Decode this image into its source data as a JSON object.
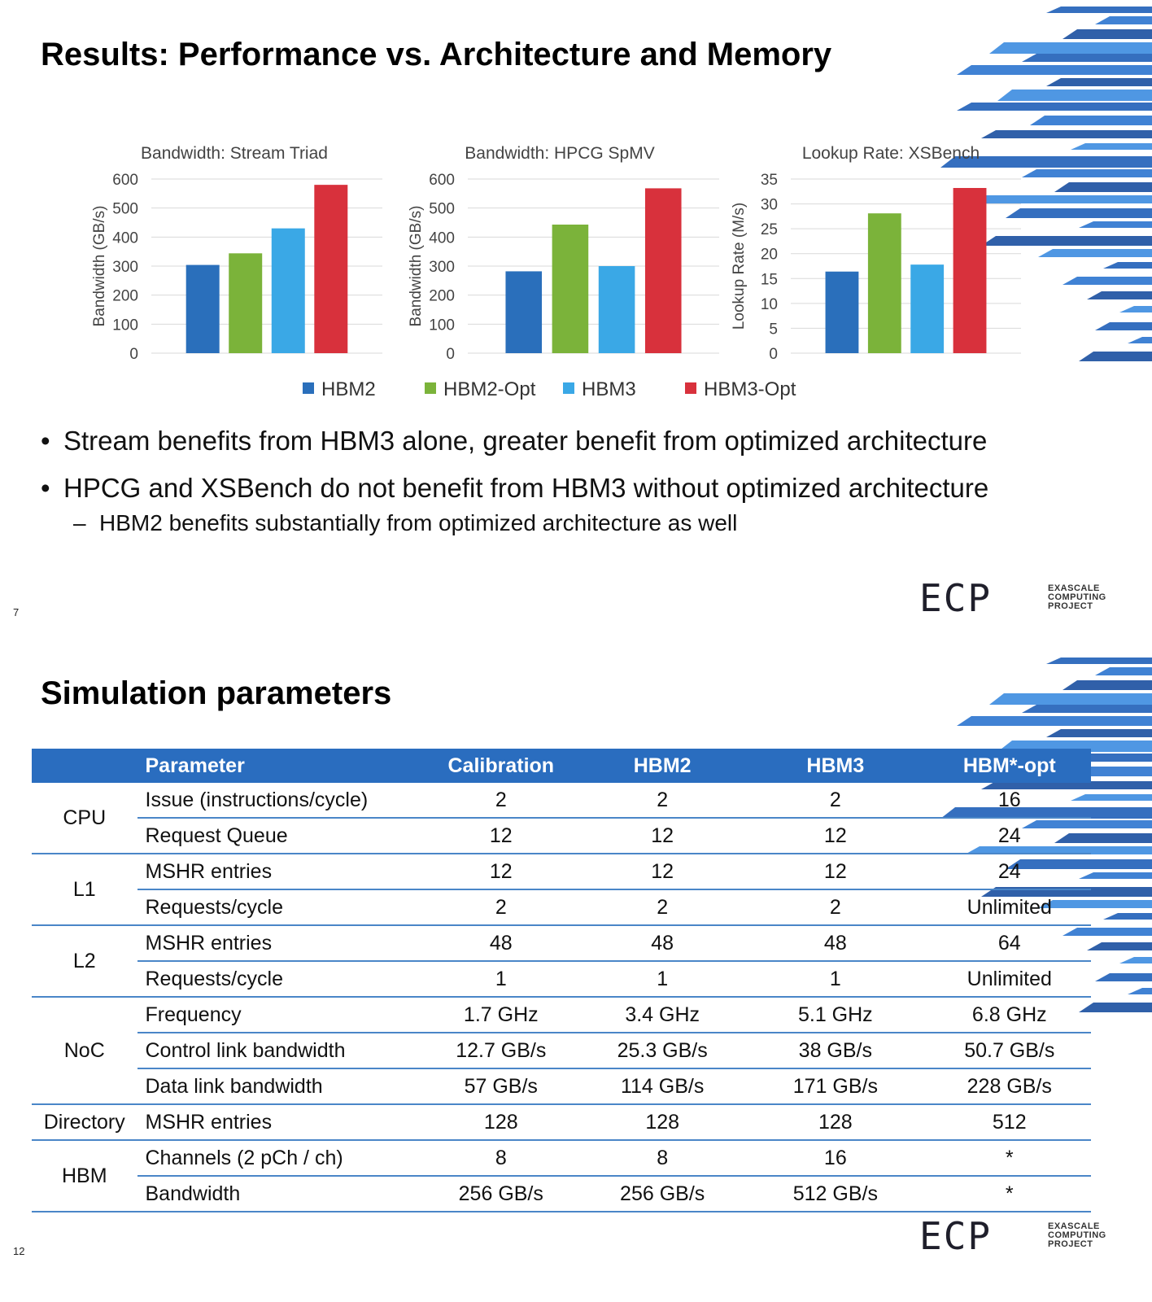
{
  "slide1": {
    "title": "Results: Performance vs. Architecture and Memory",
    "page_number": "7",
    "bullets": [
      "Stream benefits from HBM3 alone, greater benefit from optimized architecture",
      "HPCG and XSBench do not benefit from HBM3 without optimized architecture"
    ],
    "sub_bullet": "HBM2 benefits substantially from optimized architecture as well",
    "legend": [
      {
        "label": "HBM2",
        "color": "#2a6fbb"
      },
      {
        "label": "HBM2-Opt",
        "color": "#7bb33a"
      },
      {
        "label": "HBM3",
        "color": "#3aa8e6"
      },
      {
        "label": "HBM3-Opt",
        "color": "#d8313c"
      }
    ]
  },
  "chart_data": [
    {
      "type": "bar",
      "title": "Bandwidth: Stream Triad",
      "ylabel": "Bandwidth (GB/s)",
      "ylim": [
        0,
        600
      ],
      "yticks": [
        0,
        100,
        200,
        300,
        400,
        500,
        600
      ],
      "series": [
        {
          "name": "HBM2",
          "values": [
            304
          ]
        },
        {
          "name": "HBM2-Opt",
          "values": [
            344
          ]
        },
        {
          "name": "HBM3",
          "values": [
            430
          ]
        },
        {
          "name": "HBM3-Opt",
          "values": [
            580
          ]
        }
      ],
      "grid": true,
      "legend_position": "bottom"
    },
    {
      "type": "bar",
      "title": "Bandwidth: HPCG SpMV",
      "ylabel": "Bandwidth (GB/s)",
      "ylim": [
        0,
        600
      ],
      "yticks": [
        0,
        100,
        200,
        300,
        400,
        500,
        600
      ],
      "series": [
        {
          "name": "HBM2",
          "values": [
            282
          ]
        },
        {
          "name": "HBM2-Opt",
          "values": [
            443
          ]
        },
        {
          "name": "HBM3",
          "values": [
            300
          ]
        },
        {
          "name": "HBM3-Opt",
          "values": [
            568
          ]
        }
      ],
      "grid": true,
      "legend_position": "bottom"
    },
    {
      "type": "bar",
      "title": "Lookup Rate: XSBench",
      "ylabel": "Lookup Rate (M/s)",
      "ylim": [
        0,
        35
      ],
      "yticks": [
        0,
        5,
        10,
        15,
        20,
        25,
        30,
        35
      ],
      "series": [
        {
          "name": "HBM2",
          "values": [
            16.4
          ]
        },
        {
          "name": "HBM2-Opt",
          "values": [
            28.1
          ]
        },
        {
          "name": "HBM3",
          "values": [
            17.8
          ]
        },
        {
          "name": "HBM3-Opt",
          "values": [
            33.2
          ]
        }
      ],
      "grid": true,
      "legend_position": "bottom"
    }
  ],
  "slide2": {
    "title": "Simulation parameters",
    "page_number": "12",
    "table": {
      "headers": [
        "",
        "Parameter",
        "Calibration",
        "HBM2",
        "HBM3",
        "HBM*-opt"
      ],
      "groups": [
        {
          "name": "CPU",
          "rows": [
            [
              "Issue (instructions/cycle)",
              "2",
              "2",
              "2",
              "16"
            ],
            [
              "Request Queue",
              "12",
              "12",
              "12",
              "24"
            ]
          ]
        },
        {
          "name": "L1",
          "rows": [
            [
              "MSHR entries",
              "12",
              "12",
              "12",
              "24"
            ],
            [
              "Requests/cycle",
              "2",
              "2",
              "2",
              "Unlimited"
            ]
          ]
        },
        {
          "name": "L2",
          "rows": [
            [
              "MSHR entries",
              "48",
              "48",
              "48",
              "64"
            ],
            [
              "Requests/cycle",
              "1",
              "1",
              "1",
              "Unlimited"
            ]
          ]
        },
        {
          "name": "NoC",
          "rows": [
            [
              "Frequency",
              "1.7 GHz",
              "3.4 GHz",
              "5.1 GHz",
              "6.8 GHz"
            ],
            [
              "Control link bandwidth",
              "12.7 GB/s",
              "25.3 GB/s",
              "38 GB/s",
              "50.7 GB/s"
            ],
            [
              "Data link bandwidth",
              "57 GB/s",
              "114 GB/s",
              "171 GB/s",
              "228 GB/s"
            ]
          ]
        },
        {
          "name": "Directory",
          "rows": [
            [
              "MSHR entries",
              "128",
              "128",
              "128",
              "512"
            ]
          ]
        },
        {
          "name": "HBM",
          "rows": [
            [
              "Channels (2 pCh / ch)",
              "8",
              "8",
              "16",
              "*"
            ],
            [
              "Bandwidth",
              "256 GB/s",
              "256 GB/s",
              "512 GB/s",
              "*"
            ]
          ]
        }
      ]
    }
  },
  "logo": {
    "mark": "ECP",
    "lines": [
      "EXASCALE",
      "COMPUTING",
      "PROJECT"
    ]
  },
  "colors": {
    "table_header": "#2a6dbf",
    "table_rule": "#4a86c8",
    "deco_blue": "#1f5fb8"
  }
}
